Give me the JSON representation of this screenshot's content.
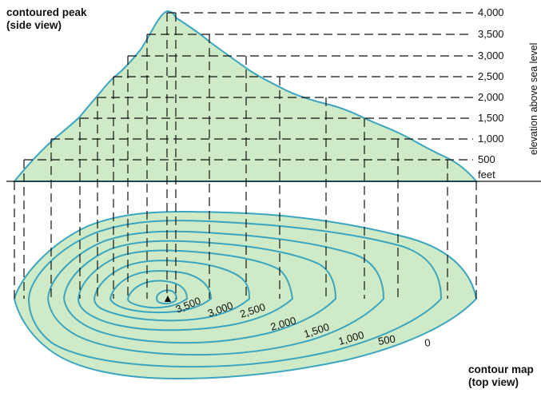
{
  "side_view": {
    "title_line1": "contoured peak",
    "title_line2": "(side view)",
    "axis_label": "elevation above sea level",
    "unit": "feet",
    "elevations": [
      "4,000",
      "3,500",
      "3,000",
      "2,500",
      "2,000",
      "1,500",
      "1,000",
      "500"
    ]
  },
  "top_view": {
    "title_line1": "contour map",
    "title_line2": "(top view)",
    "contour_labels": [
      "3,500",
      "3,000",
      "2,500",
      "2,000",
      "1,500",
      "1,000",
      "500",
      "0"
    ],
    "summit_marker": "▲"
  },
  "colors": {
    "fill": "#cfeac6",
    "contour": "#3aa5c0",
    "dash": "#111111"
  }
}
